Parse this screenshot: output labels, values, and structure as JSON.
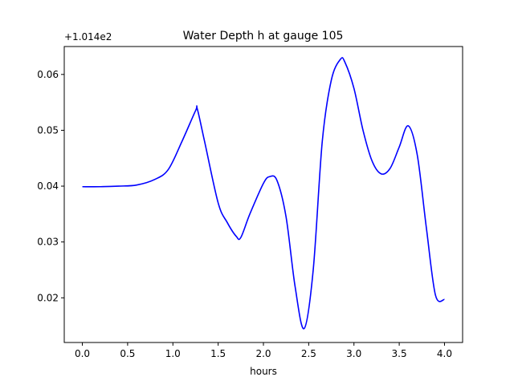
{
  "chart_data": {
    "type": "line",
    "title": "Water Depth h at gauge 105",
    "xlabel": "hours",
    "ylabel": "",
    "y_offset_label": "+1.014e2",
    "xlim": [
      -0.2,
      4.2
    ],
    "ylim": [
      0.012,
      0.065
    ],
    "xticks": [
      0.0,
      0.5,
      1.0,
      1.5,
      2.0,
      2.5,
      3.0,
      3.5,
      4.0
    ],
    "xtick_labels": [
      "0.0",
      "0.5",
      "1.0",
      "1.5",
      "2.0",
      "2.5",
      "3.0",
      "3.5",
      "4.0"
    ],
    "yticks": [
      0.02,
      0.03,
      0.04,
      0.05,
      0.06
    ],
    "ytick_labels": [
      "0.02",
      "0.03",
      "0.04",
      "0.05",
      "0.06"
    ],
    "grid": false,
    "legend": "none",
    "series": [
      {
        "color": "#0000ff",
        "x": [
          0.0,
          0.2,
          0.4,
          0.6,
          0.8,
          0.95,
          1.1,
          1.25,
          1.27,
          1.35,
          1.5,
          1.6,
          1.7,
          1.75,
          1.85,
          2.0,
          2.07,
          2.15,
          2.25,
          2.35,
          2.45,
          2.55,
          2.65,
          2.75,
          2.85,
          2.9,
          3.0,
          3.1,
          3.2,
          3.3,
          3.4,
          3.5,
          3.6,
          3.7,
          3.8,
          3.9,
          4.0
        ],
        "y": [
          0.0399,
          0.0399,
          0.04,
          0.0402,
          0.0412,
          0.043,
          0.048,
          0.0535,
          0.0538,
          0.048,
          0.037,
          0.0335,
          0.031,
          0.0308,
          0.035,
          0.0405,
          0.0417,
          0.041,
          0.0345,
          0.022,
          0.0145,
          0.025,
          0.048,
          0.059,
          0.0627,
          0.0622,
          0.0575,
          0.05,
          0.0445,
          0.0422,
          0.0432,
          0.047,
          0.0508,
          0.0455,
          0.0325,
          0.0205,
          0.0197
        ]
      }
    ]
  }
}
